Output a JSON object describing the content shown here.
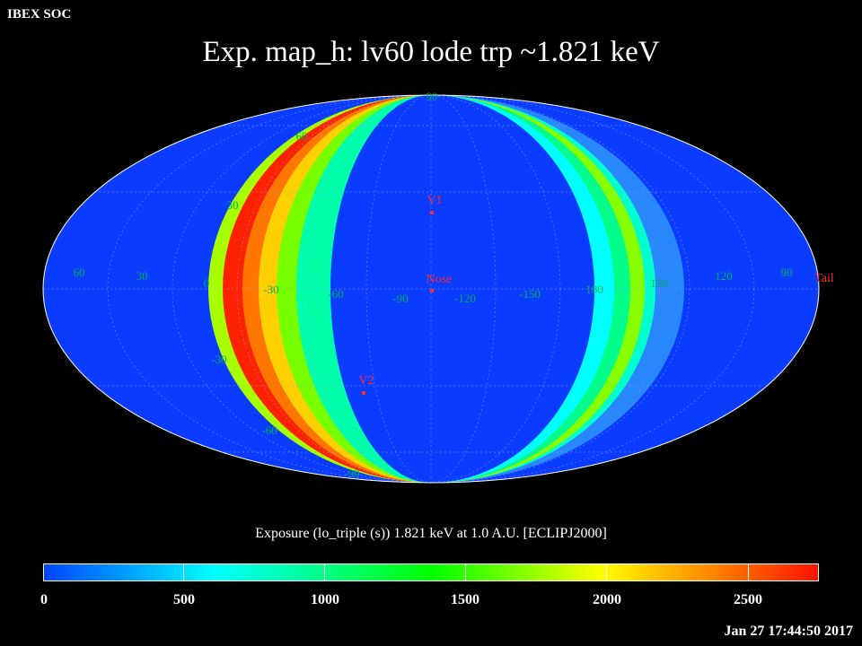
{
  "header": {
    "org": "IBEX SOC",
    "title": "Exp.   map_h: lv60 lode trp ~1.821 keV"
  },
  "map": {
    "projection": "Mollweide",
    "lon_labels": [
      "60",
      "30",
      "0",
      "-30",
      "-60",
      "-90",
      "-120",
      "-150",
      "180",
      "150",
      "120",
      "90"
    ],
    "lat_labels": [
      "90",
      "60",
      "30",
      "-30",
      "-60",
      "-90"
    ],
    "markers": [
      {
        "label": "V1",
        "color": "#ff2a2a"
      },
      {
        "label": "Nose",
        "color": "#ff2a2a"
      },
      {
        "label": "V2",
        "color": "#ff2a2a"
      },
      {
        "label": "Tail",
        "color": "#ff2a2a"
      }
    ],
    "background_color": "#0a3cff",
    "label_color": "#00b050"
  },
  "colorbar": {
    "title": "Exposure (lo_triple (s))  1.821 keV at 1.0 A.U. [ECLIPJ2000]",
    "ticks": [
      "0",
      "500",
      "1000",
      "1500",
      "2000",
      "2500"
    ],
    "range": [
      0,
      2750
    ]
  },
  "footer": {
    "timestamp": "Jan 27 17:44:50 2017"
  }
}
